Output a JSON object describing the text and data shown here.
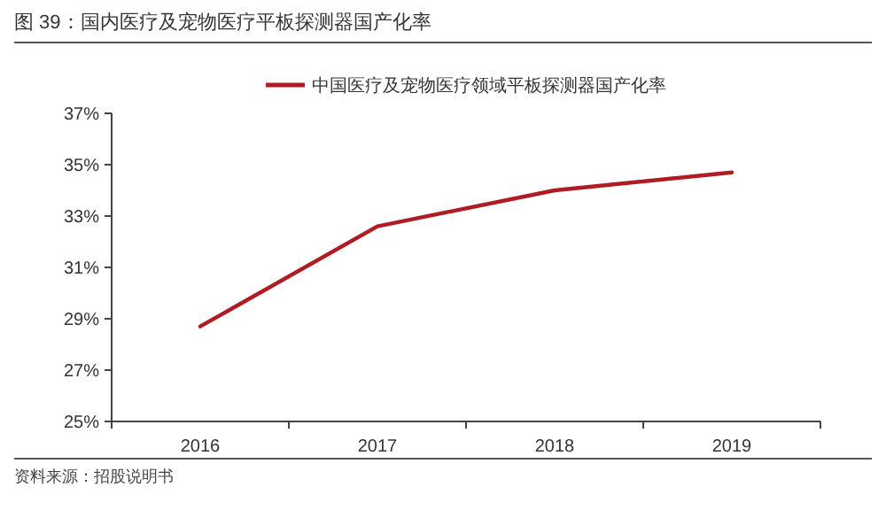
{
  "chart_data": {
    "type": "line",
    "title": "图 39：国内医疗及宠物医疗平板探测器国产化率",
    "categories": [
      "2016",
      "2017",
      "2018",
      "2019"
    ],
    "series": [
      {
        "name": "中国医疗及宠物医疗领域平板探测器国产化率",
        "color": "#b01c24",
        "values": [
          28.7,
          32.6,
          34.0,
          34.7
        ]
      }
    ],
    "ylim": [
      25,
      37
    ],
    "yticks": [
      {
        "value": 25,
        "label": "25%"
      },
      {
        "value": 27,
        "label": "27%"
      },
      {
        "value": 29,
        "label": "29%"
      },
      {
        "value": 31,
        "label": "31%"
      },
      {
        "value": 33,
        "label": "33%"
      },
      {
        "value": 35,
        "label": "35%"
      },
      {
        "value": 37,
        "label": "37%"
      }
    ],
    "grid": false,
    "legend": "top",
    "marker": "none",
    "line_style": "solid",
    "annotations": [
      "资料来源：招股说明书"
    ]
  }
}
